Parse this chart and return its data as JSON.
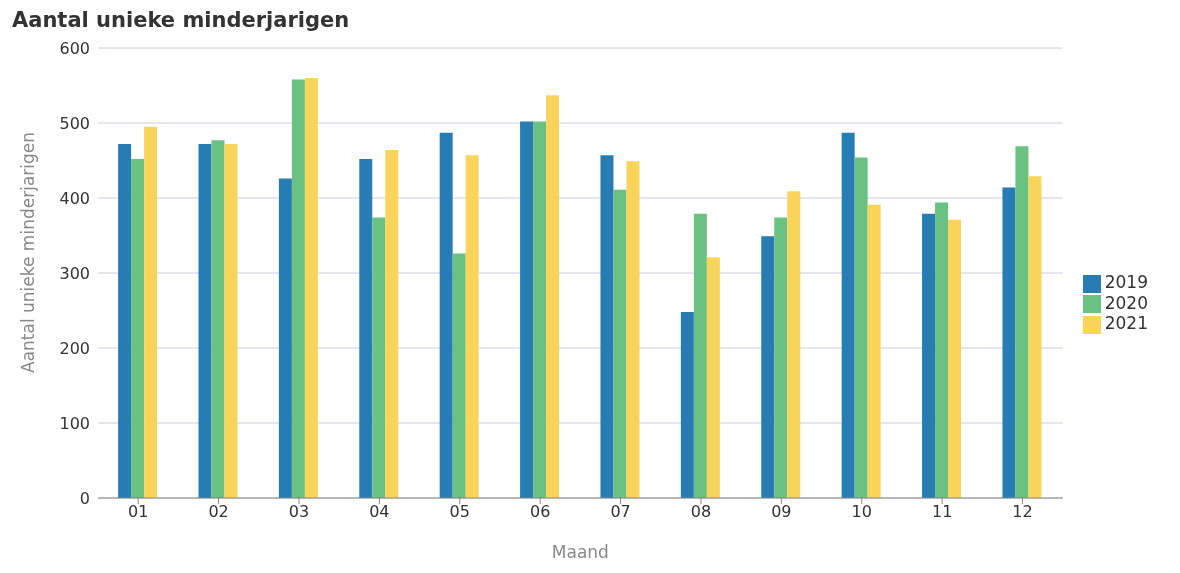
{
  "chart_data": {
    "type": "bar",
    "title": "Aantal unieke minderjarigen",
    "xlabel": "Maand",
    "ylabel": "Aantal unieke minderjarigen",
    "categories": [
      "01",
      "02",
      "03",
      "04",
      "05",
      "06",
      "07",
      "08",
      "09",
      "10",
      "11",
      "12"
    ],
    "series": [
      {
        "name": "2019",
        "color": "#277db3",
        "values": [
          472,
          472,
          426,
          452,
          487,
          502,
          457,
          248,
          349,
          487,
          379,
          414
        ]
      },
      {
        "name": "2020",
        "color": "#69c281",
        "values": [
          452,
          477,
          558,
          374,
          326,
          502,
          411,
          379,
          374,
          454,
          394,
          469
        ]
      },
      {
        "name": "2021",
        "color": "#f8d45b",
        "values": [
          495,
          472,
          560,
          464,
          457,
          537,
          449,
          321,
          409,
          391,
          371,
          429
        ]
      }
    ],
    "ylim": [
      0,
      600
    ],
    "yticks": [
      0,
      100,
      200,
      300,
      400,
      500,
      600
    ],
    "grid": "y",
    "legend": "right"
  }
}
